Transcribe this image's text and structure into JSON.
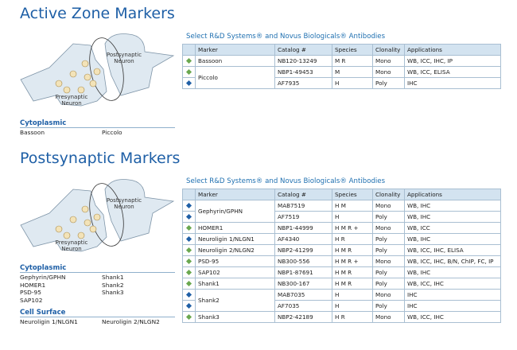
{
  "sections": [
    {
      "title": "Active Zone Markers",
      "diagram": {
        "post_label": "Postsynaptic Neuron",
        "pre_label": "Presynaptic Neuron"
      },
      "lists": [
        {
          "heading": "Cytoplasmic",
          "columns": [
            [
              "Bassoon"
            ],
            [
              "Piccolo"
            ]
          ]
        }
      ],
      "table": {
        "caption": "Select R&D Systems® and Novus Biologicals® Antibodies",
        "header": [
          "Marker",
          "Catalog #",
          "Species",
          "Clonality",
          "Applications"
        ],
        "groups": [
          {
            "marker": "Bassoon",
            "products": [
              {
                "color": "#6aa84f",
                "catalog": "NB120-13249",
                "species": "M R",
                "clonality": "Mono",
                "applications": "WB, ICC, IHC, IP"
              }
            ]
          },
          {
            "marker": "Piccolo",
            "products": [
              {
                "color": "#6aa84f",
                "catalog": "NBP1-49453",
                "species": "M",
                "clonality": "Mono",
                "applications": "WB, ICC, ELISA"
              },
              {
                "color": "#1f5fa6",
                "catalog": "AF7935",
                "species": "H",
                "clonality": "Poly",
                "applications": "IHC"
              }
            ]
          }
        ]
      }
    },
    {
      "title": "Postsynaptic Markers",
      "diagram": {
        "post_label": "Postsynaptic Neuron",
        "pre_label": "Presynaptic Neuron"
      },
      "lists": [
        {
          "heading": "Cytoplasmic",
          "columns": [
            [
              "Gephyrin/GPHN",
              "HOMER1",
              "PSD-95",
              "SAP102"
            ],
            [
              "Shank1",
              "Shank2",
              "Shank3"
            ]
          ]
        },
        {
          "heading": "Cell Surface",
          "columns": [
            [
              "Neuroligin 1/NLGN1"
            ],
            [
              "Neuroligin 2/NLGN2"
            ]
          ]
        }
      ],
      "table": {
        "caption": "Select R&D Systems® and Novus Biologicals® Antibodies",
        "header": [
          "Marker",
          "Catalog #",
          "Species",
          "Clonality",
          "Applications"
        ],
        "groups": [
          {
            "marker": "Gephyrin/GPHN",
            "products": [
              {
                "color": "#1f5fa6",
                "catalog": "MAB7519",
                "species": "H M",
                "clonality": "Mono",
                "applications": "WB, IHC"
              },
              {
                "color": "#1f5fa6",
                "catalog": "AF7519",
                "species": "H",
                "clonality": "Poly",
                "applications": "WB, IHC"
              }
            ]
          },
          {
            "marker": "HOMER1",
            "products": [
              {
                "color": "#6aa84f",
                "catalog": "NBP1-44999",
                "species": "H M R +",
                "clonality": "Mono",
                "applications": "WB, ICC"
              }
            ]
          },
          {
            "marker": "Neuroligin 1/NLGN1",
            "products": [
              {
                "color": "#1f5fa6",
                "catalog": "AF4340",
                "species": "H R",
                "clonality": "Poly",
                "applications": "WB, IHC"
              }
            ]
          },
          {
            "marker": "Neuroligin 2/NLGN2",
            "products": [
              {
                "color": "#6aa84f",
                "catalog": "NBP2-41299",
                "species": "H M R",
                "clonality": "Poly",
                "applications": "WB, ICC, IHC, ELISA"
              }
            ]
          },
          {
            "marker": "PSD-95",
            "products": [
              {
                "color": "#6aa84f",
                "catalog": "NB300-556",
                "species": "H M R +",
                "clonality": "Mono",
                "applications": "WB, ICC, IHC, B/N, ChIP, FC, IP"
              }
            ]
          },
          {
            "marker": "SAP102",
            "products": [
              {
                "color": "#6aa84f",
                "catalog": "NBP1-87691",
                "species": "H M R",
                "clonality": "Poly",
                "applications": "WB, IHC"
              }
            ]
          },
          {
            "marker": "Shank1",
            "products": [
              {
                "color": "#6aa84f",
                "catalog": "NB300-167",
                "species": "H M R",
                "clonality": "Poly",
                "applications": "WB, ICC, IHC"
              }
            ]
          },
          {
            "marker": "Shank2",
            "products": [
              {
                "color": "#1f5fa6",
                "catalog": "MAB7035",
                "species": "H",
                "clonality": "Mono",
                "applications": "IHC"
              },
              {
                "color": "#1f5fa6",
                "catalog": "AF7035",
                "species": "H",
                "clonality": "Poly",
                "applications": "IHC"
              }
            ]
          },
          {
            "marker": "Shank3",
            "products": [
              {
                "color": "#6aa84f",
                "catalog": "NBP2-42189",
                "species": "H R",
                "clonality": "Mono",
                "applications": "WB, ICC, IHC"
              }
            ]
          }
        ]
      }
    }
  ]
}
